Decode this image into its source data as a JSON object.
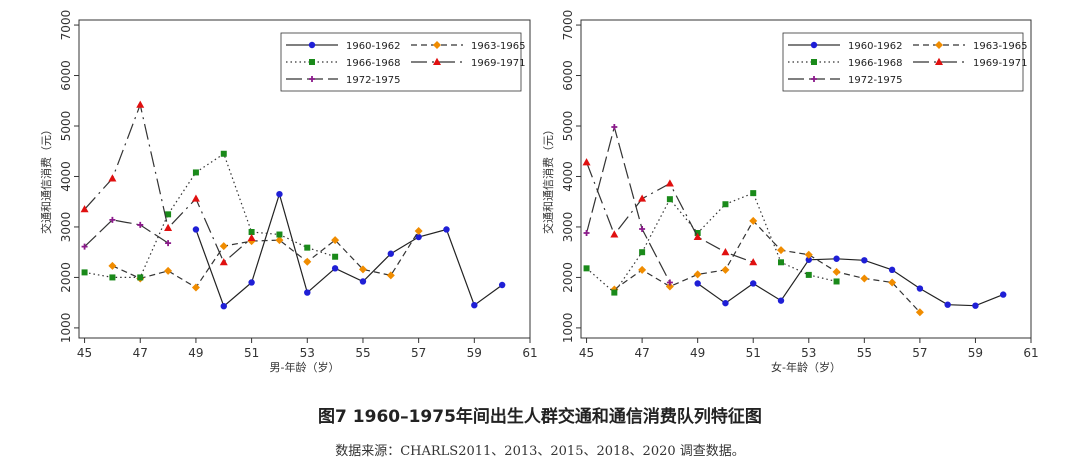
{
  "figure": {
    "title": "图7 1960–1975年间出生人群交通和通信消费队列特征图",
    "source": "数据来源：CHARLS2011、2013、2015、2018、2020 调查数据。"
  },
  "colors": {
    "c1960": "#1f1fd6",
    "c1963": "#f08c00",
    "c1966": "#1a8a1a",
    "c1969": "#e01010",
    "c1972": "#8b1a8b"
  },
  "chart_data": [
    {
      "type": "line",
      "title": "",
      "xlabel": "男-年龄（岁）",
      "ylabel": "交通和通信消费（元）",
      "xlim": [
        44.8,
        61
      ],
      "ylim": [
        800,
        7100
      ],
      "xticks": [
        45,
        47,
        49,
        51,
        53,
        55,
        57,
        59,
        61
      ],
      "yticks": [
        1000,
        2000,
        3000,
        4000,
        5000,
        6000,
        7000
      ],
      "legend_position": "top-right",
      "series": [
        {
          "name": "1960-1962",
          "x": [
            49,
            50,
            51,
            52,
            53,
            54,
            55,
            56,
            57,
            58,
            59,
            60
          ],
          "values": [
            2950,
            1430,
            1900,
            3650,
            1700,
            2180,
            1920,
            2470,
            2800,
            2950,
            1450,
            1850
          ]
        },
        {
          "name": "1963-1965",
          "x": [
            46,
            47,
            48,
            49,
            50,
            51,
            52,
            53,
            54,
            55,
            56,
            57
          ],
          "values": [
            2230,
            1980,
            2130,
            1800,
            2620,
            2720,
            2740,
            2310,
            2740,
            2160,
            2040,
            2920
          ]
        },
        {
          "name": "1966-1968",
          "x": [
            45,
            46,
            47,
            48,
            49,
            50,
            51,
            52,
            53,
            54
          ],
          "values": [
            2100,
            2000,
            2000,
            3250,
            4080,
            4450,
            2900,
            2850,
            2590,
            2410
          ]
        },
        {
          "name": "1969-1971",
          "x": [
            45,
            46,
            47,
            48,
            49,
            50,
            51
          ],
          "values": [
            3350,
            3960,
            5420,
            2980,
            3560,
            2300,
            2780
          ]
        },
        {
          "name": "1972-1975",
          "x": [
            45,
            46,
            47,
            48
          ],
          "values": [
            2610,
            3140,
            3040,
            2680
          ]
        }
      ]
    },
    {
      "type": "line",
      "title": "",
      "xlabel": "女-年龄（岁）",
      "ylabel": "交通和通信消费（元）",
      "xlim": [
        44.8,
        61
      ],
      "ylim": [
        800,
        7100
      ],
      "xticks": [
        45,
        47,
        49,
        51,
        53,
        55,
        57,
        59,
        61
      ],
      "yticks": [
        1000,
        2000,
        3000,
        4000,
        5000,
        6000,
        7000
      ],
      "legend_position": "top-right",
      "series": [
        {
          "name": "1960-1962",
          "x": [
            49,
            50,
            51,
            52,
            53,
            54,
            55,
            56,
            57,
            58,
            59,
            60
          ],
          "values": [
            1880,
            1490,
            1880,
            1540,
            2350,
            2370,
            2340,
            2150,
            1780,
            1460,
            1440,
            1660
          ]
        },
        {
          "name": "1963-1965",
          "x": [
            46,
            47,
            48,
            49,
            50,
            51,
            52,
            53,
            54,
            55,
            56,
            57
          ],
          "values": [
            1760,
            2150,
            1820,
            2060,
            2150,
            3120,
            2540,
            2450,
            2110,
            1980,
            1900,
            1310
          ]
        },
        {
          "name": "1966-1968",
          "x": [
            45,
            46,
            47,
            48,
            49,
            50,
            51,
            52,
            53,
            54
          ],
          "values": [
            2180,
            1700,
            2500,
            3550,
            2880,
            3450,
            3670,
            2300,
            2050,
            1920
          ]
        },
        {
          "name": "1969-1971",
          "x": [
            45,
            46,
            47,
            48,
            49,
            50,
            51
          ],
          "values": [
            4280,
            2850,
            3560,
            3860,
            2800,
            2500,
            2300
          ]
        },
        {
          "name": "1972-1975",
          "x": [
            45,
            46,
            47,
            48
          ],
          "values": [
            2880,
            4980,
            2960,
            1900
          ]
        }
      ]
    }
  ]
}
